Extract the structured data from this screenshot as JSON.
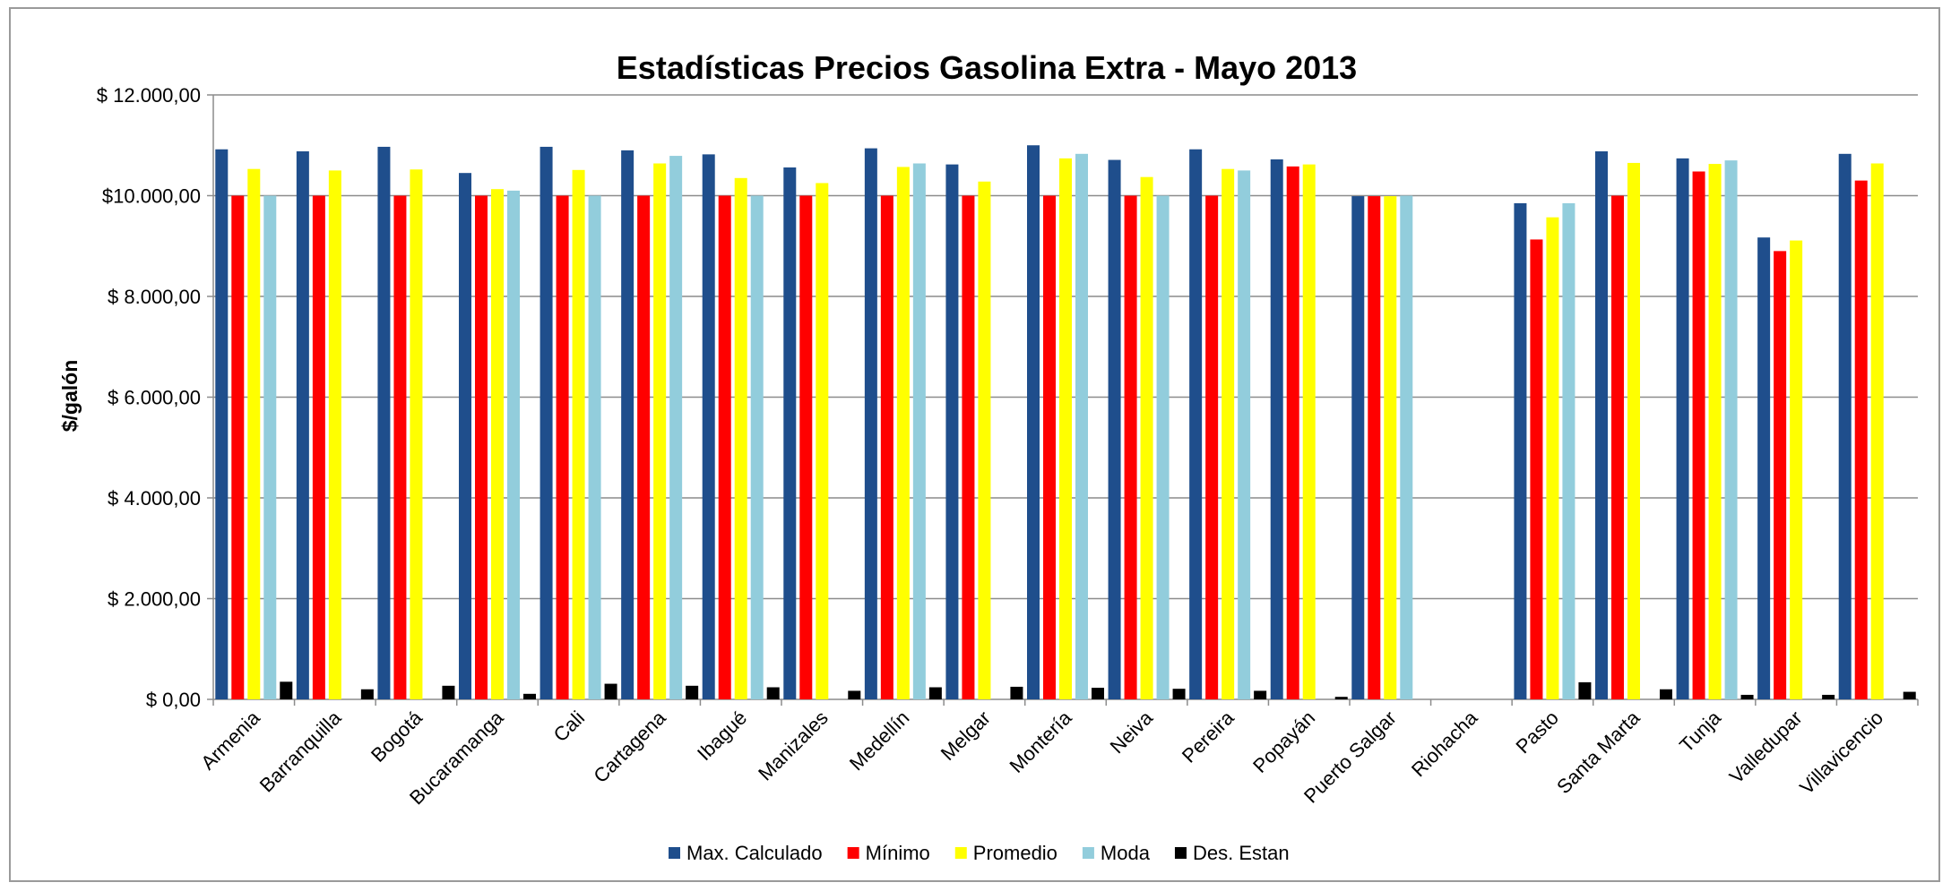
{
  "chart_data": {
    "type": "bar",
    "title": "Estadísticas Precios Gasolina Extra - Mayo 2013",
    "xlabel": "",
    "ylabel": "$/galón",
    "ylim": [
      0,
      12000
    ],
    "yticks": [
      0,
      2000,
      4000,
      6000,
      8000,
      10000,
      12000
    ],
    "ytick_labels": [
      "$ 0,00",
      "$ 2.000,00",
      "$ 4.000,00",
      "$ 6.000,00",
      "$ 8.000,00",
      "$10.000,00",
      "$ 12.000,00"
    ],
    "grid": true,
    "legend_position": "bottom",
    "categories": [
      "Armenia",
      "Barranquilla",
      "Bogotá",
      "Bucaramanga",
      "Cali",
      "Cartagena",
      "Ibagué",
      "Manizales",
      "Medellín",
      "Melgar",
      "Montería",
      "Neiva",
      "Pereira",
      "Popayán",
      "Puerto Salgar",
      "Riohacha",
      "Pasto",
      "Santa Marta",
      "Tunja",
      "Valledupar",
      "Villavicencio"
    ],
    "series": [
      {
        "name": "Max. Calculado",
        "color": "#1f4e8c",
        "values": [
          10920,
          10880,
          10970,
          10450,
          10970,
          10900,
          10820,
          10560,
          10940,
          10620,
          11000,
          10710,
          10920,
          10720,
          9990,
          null,
          9850,
          10880,
          10740,
          9170,
          10830
        ]
      },
      {
        "name": "Mínimo",
        "color": "#ff0000",
        "values": [
          10000,
          10000,
          10000,
          10000,
          10000,
          10000,
          10000,
          10000,
          10000,
          10000,
          10000,
          10000,
          10000,
          10580,
          9990,
          null,
          9130,
          10000,
          10480,
          8900,
          10300
        ]
      },
      {
        "name": "Promedio",
        "color": "#ffff00",
        "values": [
          10530,
          10500,
          10520,
          10130,
          10510,
          10640,
          10350,
          10250,
          10570,
          10280,
          10740,
          10370,
          10530,
          10620,
          9990,
          null,
          9570,
          10650,
          10630,
          9110,
          10640
        ]
      },
      {
        "name": "Moda",
        "color": "#92cddc",
        "values": [
          10000,
          null,
          null,
          10100,
          10000,
          10790,
          10000,
          null,
          10640,
          null,
          10830,
          10000,
          10500,
          null,
          10000,
          null,
          9850,
          null,
          10700,
          null,
          null
        ]
      },
      {
        "name": "Des. Estan",
        "color": "#000000",
        "values": [
          350,
          200,
          270,
          110,
          310,
          270,
          240,
          170,
          240,
          250,
          230,
          210,
          170,
          50,
          0,
          null,
          340,
          200,
          90,
          90,
          150
        ]
      }
    ]
  }
}
